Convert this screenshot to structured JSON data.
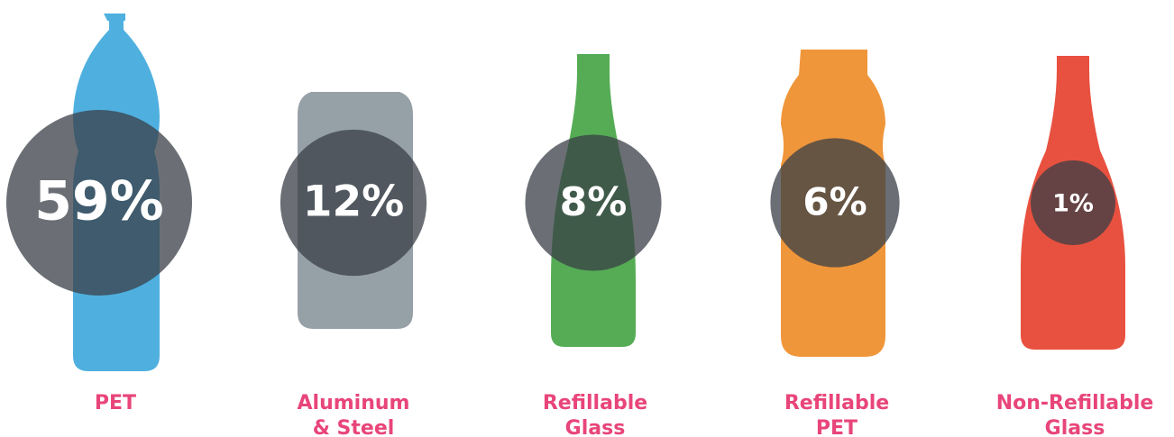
{
  "chart_data": {
    "type": "proportional-circles",
    "categories": [
      [
        "PET"
      ],
      [
        "Aluminum",
        "& Steel"
      ],
      [
        "Refillable",
        "Glass"
      ],
      [
        "Refillable",
        "PET"
      ],
      [
        "Non-Refillable",
        "Glass"
      ]
    ],
    "values": [
      59,
      12,
      8,
      6,
      1
    ],
    "value_labels": [
      "59%",
      "12%",
      "8%",
      "6%",
      "1%"
    ],
    "colors": [
      "#4fb0e0",
      "#96a0a7",
      "#55ac55",
      "#f0963a",
      "#e8513f"
    ]
  }
}
